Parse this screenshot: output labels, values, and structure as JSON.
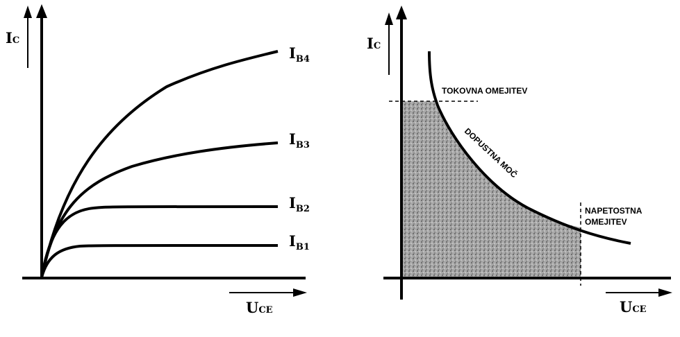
{
  "left_diagram": {
    "y_axis_label": {
      "main": "I",
      "sub": "C"
    },
    "x_axis_label": {
      "main": "U",
      "sub": "CE"
    },
    "curves": [
      {
        "main": "I",
        "sub": "B4"
      },
      {
        "main": "I",
        "sub": "B3"
      },
      {
        "main": "I",
        "sub": "B2"
      },
      {
        "main": "I",
        "sub": "B1"
      }
    ]
  },
  "right_diagram": {
    "y_axis_label": {
      "main": "I",
      "sub": "C"
    },
    "x_axis_label": {
      "main": "U",
      "sub": "CE"
    },
    "current_limit_label": "TOKOVNA OMEJITEV",
    "power_limit_label": "DOPUSTNA MOČ",
    "voltage_limit_label_line1": "NAPETOSTNA",
    "voltage_limit_label_line2": "OMEJITEV"
  },
  "colors": {
    "ink": "#000000",
    "area_fill": "#9a9a9a",
    "background": "#ffffff"
  }
}
